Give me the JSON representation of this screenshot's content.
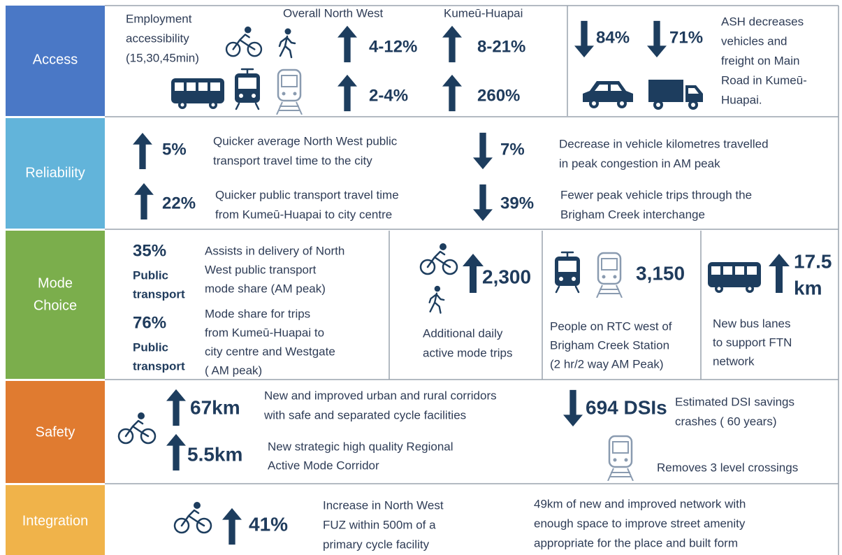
{
  "access": {
    "label": "Access",
    "employment_lines": [
      "Employment",
      "accessibility",
      "(15,30,45min)"
    ],
    "overall_heading": "Overall North West",
    "kumeu_heading": "Kumeū-Huapai",
    "active_overall": "4-12%",
    "active_kumeu": "8-21%",
    "pt_overall": "2-4%",
    "pt_kumeu": "260%",
    "car_decrease": "84%",
    "freight_decrease": "71%",
    "ash_lines": [
      "ASH decreases",
      "vehicles and",
      "freight on Main",
      "Road in Kumeū-",
      "Huapai."
    ]
  },
  "reliability": {
    "label": "Reliability",
    "items": [
      {
        "value": "5%",
        "lines": [
          "Quicker average North West public",
          "transport travel time to the city"
        ]
      },
      {
        "value": "22%",
        "lines": [
          "Quicker public transport travel time",
          "from Kumeū-Huapai to city centre"
        ]
      },
      {
        "value": "7%",
        "lines": [
          "Decrease in vehicle kilometres travelled",
          "in peak congestion in AM peak"
        ]
      },
      {
        "value": "39%",
        "lines": [
          "Fewer peak vehicle trips through the",
          "Brigham Creek interchange"
        ]
      }
    ]
  },
  "mode_choice": {
    "label_lines": [
      "Mode",
      "Choice"
    ],
    "shares": [
      {
        "value": "35%",
        "type_lines": [
          "Public",
          "transport"
        ],
        "lines": [
          "Assists in delivery of North",
          "West public transport",
          "mode share (AM peak)"
        ]
      },
      {
        "value": "76%",
        "type_lines": [
          "Public",
          "transport"
        ],
        "lines": [
          "Mode share for trips",
          "from Kumeū-Huapai to",
          "city centre and Westgate",
          "( AM peak)"
        ]
      }
    ],
    "active": {
      "value": "2,300",
      "lines": [
        "Additional daily",
        "active mode trips"
      ]
    },
    "rtc": {
      "value": "3,150",
      "lines": [
        "People on RTC west of",
        "Brigham Creek Station",
        "(2 hr/2 way AM Peak)"
      ]
    },
    "bus": {
      "value_lines": [
        "17.5",
        "km"
      ],
      "lines": [
        "New bus lanes",
        "to support FTN",
        "network"
      ]
    }
  },
  "safety": {
    "label": "Safety",
    "corridors": {
      "value": "67km",
      "lines": [
        "New and improved urban and rural corridors",
        "with safe and separated cycle facilities"
      ]
    },
    "regional": {
      "value": "5.5km",
      "lines": [
        "New strategic high quality Regional",
        "Active Mode Corridor"
      ]
    },
    "dsi": {
      "value": "694 DSIs",
      "lines": [
        "Estimated DSI savings",
        "crashes ( 60 years)"
      ]
    },
    "crossings": "Removes 3 level crossings"
  },
  "integration": {
    "label": "Integration",
    "cycle": {
      "value": "41%",
      "lines": [
        "Increase in North West",
        "FUZ within 500m of a",
        "primary cycle facility"
      ]
    },
    "network_lines": [
      "49km of new and improved network with",
      "enough space to improve street amenity",
      "appropriate for the place and built form"
    ]
  }
}
